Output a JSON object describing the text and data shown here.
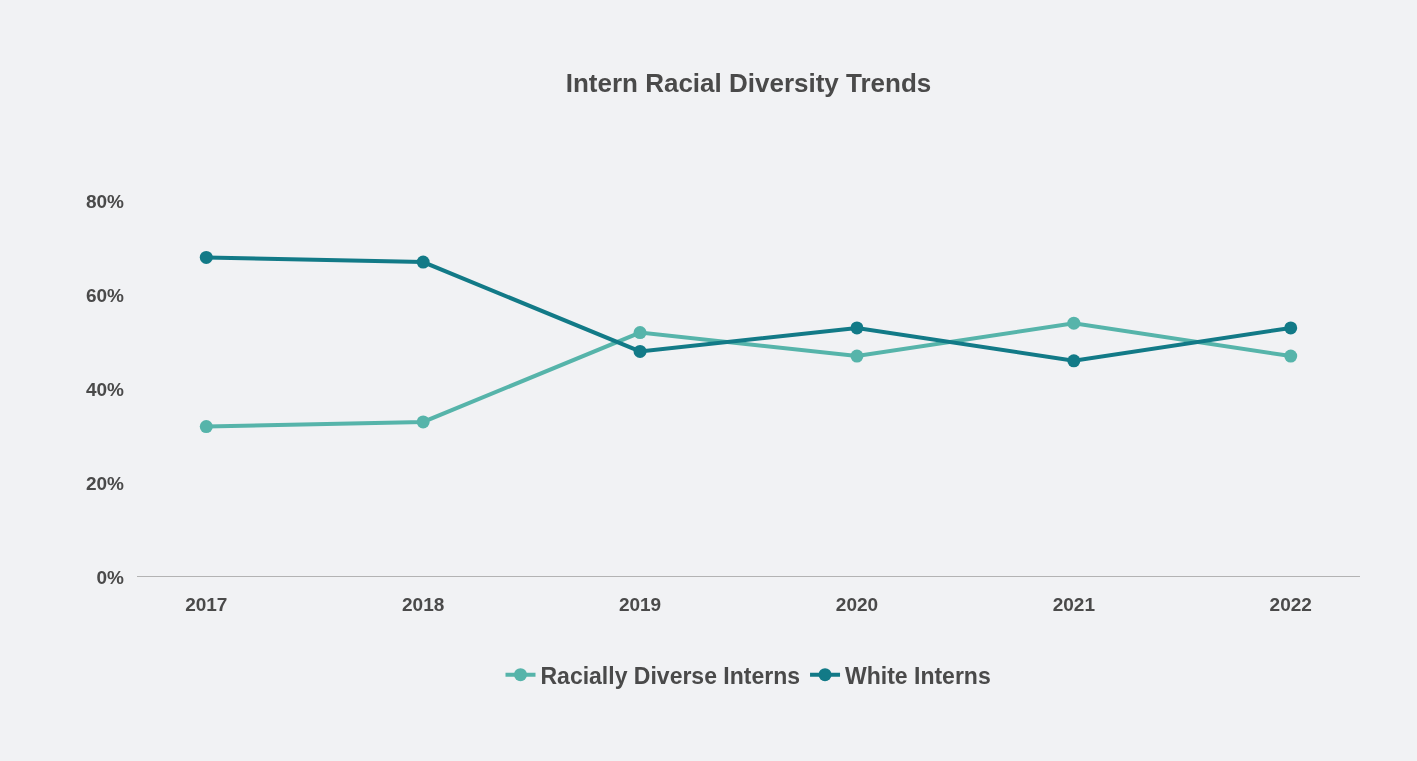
{
  "chart_data": {
    "type": "line",
    "title": "Intern Racial Diversity Trends",
    "categories": [
      "2017",
      "2018",
      "2019",
      "2020",
      "2021",
      "2022"
    ],
    "series": [
      {
        "name": "Racially Diverse Interns",
        "color": "#56b4aa",
        "values": [
          32,
          33,
          52,
          47,
          54,
          47
        ]
      },
      {
        "name": "White Interns",
        "color": "#127a87",
        "values": [
          68,
          67,
          48,
          53,
          46,
          53
        ]
      }
    ],
    "ylim": [
      0,
      80
    ],
    "yticks": [
      {
        "value": 0,
        "label": "0%"
      },
      {
        "value": 20,
        "label": "20%"
      },
      {
        "value": 40,
        "label": "40%"
      },
      {
        "value": 60,
        "label": "60%"
      },
      {
        "value": 80,
        "label": "80%"
      }
    ],
    "grid": false,
    "legend": "bottom",
    "marker": "circle",
    "line_style": "solid"
  }
}
